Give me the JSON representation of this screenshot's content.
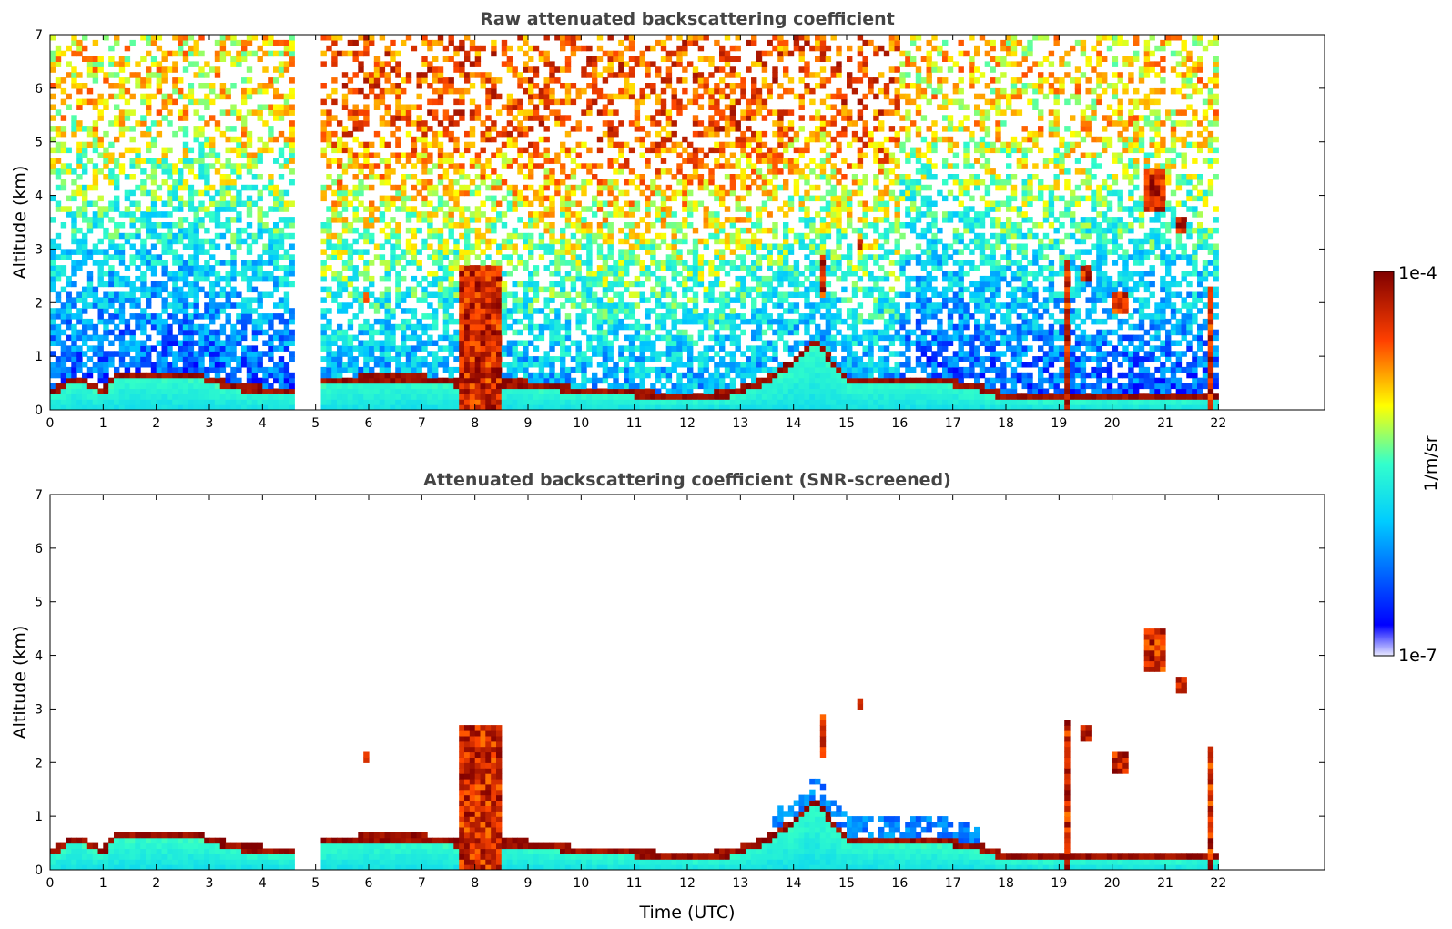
{
  "chart_data": [
    {
      "type": "heatmap",
      "title": "Raw attenuated backscattering coefficient",
      "xlabel": "",
      "ylabel": "Altitude (km)",
      "xlim": [
        0,
        24
      ],
      "ylim": [
        0,
        7
      ],
      "x_ticks": [
        "0",
        "1",
        "2",
        "3",
        "4",
        "5",
        "6",
        "7",
        "8",
        "9",
        "10",
        "11",
        "12",
        "13",
        "14",
        "15",
        "16",
        "17",
        "18",
        "19",
        "20",
        "21",
        "22"
      ],
      "y_ticks": [
        "0",
        "1",
        "2",
        "3",
        "4",
        "5",
        "6",
        "7"
      ],
      "data_end_hour": 22,
      "gaps_hours": [
        [
          3.77,
          3.84
        ],
        [
          4.62,
          5.06
        ]
      ],
      "boundary_layer": [
        [
          0,
          0.25
        ],
        [
          0.5,
          0.55
        ],
        [
          1,
          0.3
        ],
        [
          1.3,
          0.6
        ],
        [
          2,
          0.62
        ],
        [
          2.7,
          0.6
        ],
        [
          3.2,
          0.45
        ],
        [
          3.6,
          0.35
        ],
        [
          4.6,
          0.3
        ],
        [
          5.1,
          0.45
        ],
        [
          6,
          0.55
        ],
        [
          7,
          0.55
        ],
        [
          7.6,
          0.45
        ],
        [
          8.8,
          0.45
        ],
        [
          10,
          0.3
        ],
        [
          11,
          0.25
        ],
        [
          12,
          0.2
        ],
        [
          12.8,
          0.25
        ],
        [
          13.5,
          0.5
        ],
        [
          14,
          0.85
        ],
        [
          14.4,
          1.25
        ],
        [
          15,
          0.5
        ],
        [
          16,
          0.5
        ],
        [
          17,
          0.45
        ],
        [
          17.5,
          0.35
        ],
        [
          18,
          0.2
        ],
        [
          19,
          0.2
        ],
        [
          19.3,
          0.2
        ],
        [
          20,
          0.2
        ],
        [
          21,
          0.2
        ],
        [
          21.8,
          0.2
        ]
      ],
      "clouds": [
        [
          7.7,
          8.5,
          0,
          2.7
        ],
        [
          19.1,
          19.25,
          0,
          2.8
        ],
        [
          21.85,
          21.95,
          0,
          2.3
        ],
        [
          14.5,
          14.6,
          2.1,
          2.9
        ],
        [
          15.25,
          15.35,
          3.0,
          3.15
        ],
        [
          20.6,
          21.0,
          3.7,
          4.5
        ],
        [
          21.25,
          21.45,
          3.3,
          3.6
        ],
        [
          19.4,
          19.6,
          2.4,
          2.7
        ],
        [
          20.0,
          20.3,
          1.8,
          2.2
        ],
        [
          5.9,
          6.0,
          2.0,
          2.2
        ]
      ],
      "colorbar": {
        "min_label": "1e-7",
        "max_label": "1e-4",
        "unit": "1/m/sr",
        "scale": "log"
      },
      "snr_screened": false
    },
    {
      "type": "heatmap",
      "title": "Attenuated backscattering coefficient (SNR-screened)",
      "xlabel": "Time (UTC)",
      "ylabel": "Altitude (km)",
      "xlim": [
        0,
        24
      ],
      "ylim": [
        0,
        7
      ],
      "x_ticks": [
        "0",
        "1",
        "2",
        "3",
        "4",
        "5",
        "6",
        "7",
        "8",
        "9",
        "10",
        "11",
        "12",
        "13",
        "14",
        "15",
        "16",
        "17",
        "18",
        "19",
        "20",
        "21",
        "22"
      ],
      "y_ticks": [
        "0",
        "1",
        "2",
        "3",
        "4",
        "5",
        "6",
        "7"
      ],
      "data_end_hour": 22,
      "gaps_hours": [
        [
          3.77,
          3.84
        ],
        [
          4.62,
          5.06
        ]
      ],
      "boundary_layer": [
        [
          0,
          0.25
        ],
        [
          0.5,
          0.55
        ],
        [
          1,
          0.3
        ],
        [
          1.3,
          0.6
        ],
        [
          2,
          0.62
        ],
        [
          2.7,
          0.6
        ],
        [
          3.2,
          0.45
        ],
        [
          3.6,
          0.35
        ],
        [
          4.6,
          0.3
        ],
        [
          5.1,
          0.45
        ],
        [
          6,
          0.55
        ],
        [
          7,
          0.55
        ],
        [
          7.6,
          0.45
        ],
        [
          8.8,
          0.45
        ],
        [
          10,
          0.3
        ],
        [
          11,
          0.25
        ],
        [
          12,
          0.2
        ],
        [
          12.8,
          0.25
        ],
        [
          13.5,
          0.5
        ],
        [
          14,
          0.85
        ],
        [
          14.4,
          1.25
        ],
        [
          15,
          0.5
        ],
        [
          16,
          0.5
        ],
        [
          17,
          0.45
        ],
        [
          17.5,
          0.35
        ],
        [
          18,
          0.2
        ],
        [
          19,
          0.2
        ],
        [
          19.3,
          0.2
        ],
        [
          20,
          0.2
        ],
        [
          21,
          0.2
        ],
        [
          21.8,
          0.2
        ]
      ],
      "clouds": [
        [
          7.7,
          8.5,
          0,
          2.7
        ],
        [
          19.1,
          19.25,
          0,
          2.8
        ],
        [
          21.85,
          21.95,
          0,
          2.3
        ],
        [
          14.5,
          14.6,
          2.1,
          2.9
        ],
        [
          15.25,
          15.35,
          3.0,
          3.15
        ],
        [
          20.6,
          21.0,
          3.7,
          4.5
        ],
        [
          21.25,
          21.45,
          3.3,
          3.6
        ],
        [
          19.4,
          19.6,
          2.4,
          2.7
        ],
        [
          20.0,
          20.3,
          1.8,
          2.2
        ],
        [
          5.9,
          6.0,
          2.0,
          2.2
        ]
      ],
      "colorbar": {
        "min_label": "1e-7",
        "max_label": "1e-4",
        "unit": "1/m/sr",
        "scale": "log"
      },
      "snr_screened": true
    }
  ],
  "colorbar": {
    "min_label": "1e-7",
    "max_label": "1e-4",
    "unit": "1/m/sr"
  },
  "colors": {
    "jet_low": "#0000ff",
    "jet_mid": "#00ffff",
    "jet_high": "#ff0000",
    "jet_top": "#800000",
    "title_color": "#444444"
  }
}
